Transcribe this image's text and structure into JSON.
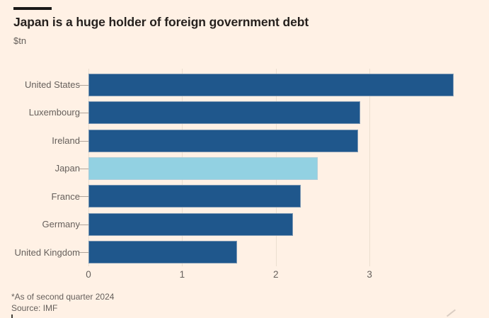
{
  "header": {
    "title": "Japan is a huge holder of foreign government debt",
    "subtitle": "$tn"
  },
  "footer": {
    "note": "*As of second quarter 2024",
    "source": "Source: IMF"
  },
  "colors": {
    "background": "#FFF1E5",
    "bar_default": "#1F578C",
    "bar_highlight": "#92D1E2",
    "title_text": "#26211E",
    "muted_text": "#66605C",
    "gridline": "#ECDFD0",
    "category_tick": "#AFA49A",
    "kicker_bar": "#1A1817"
  },
  "chart_data": {
    "type": "bar",
    "orientation": "horizontal",
    "title": "Japan is a huge holder of foreign government debt",
    "subtitle_unit": "$tn",
    "categories": [
      "United States",
      "Luxembourg",
      "Ireland",
      "Japan",
      "France",
      "Germany",
      "United Kingdom"
    ],
    "values": [
      3.9,
      2.9,
      2.88,
      2.45,
      2.27,
      2.18,
      1.59
    ],
    "highlighted_category": "Japan",
    "highlight_note": "Japan bar shown in light blue, all others dark blue",
    "x_ticks": [
      0,
      1,
      2,
      3
    ],
    "xlim": [
      0,
      4.17
    ],
    "ylabel": "",
    "xlabel": "",
    "grid": true,
    "legend": "none"
  }
}
